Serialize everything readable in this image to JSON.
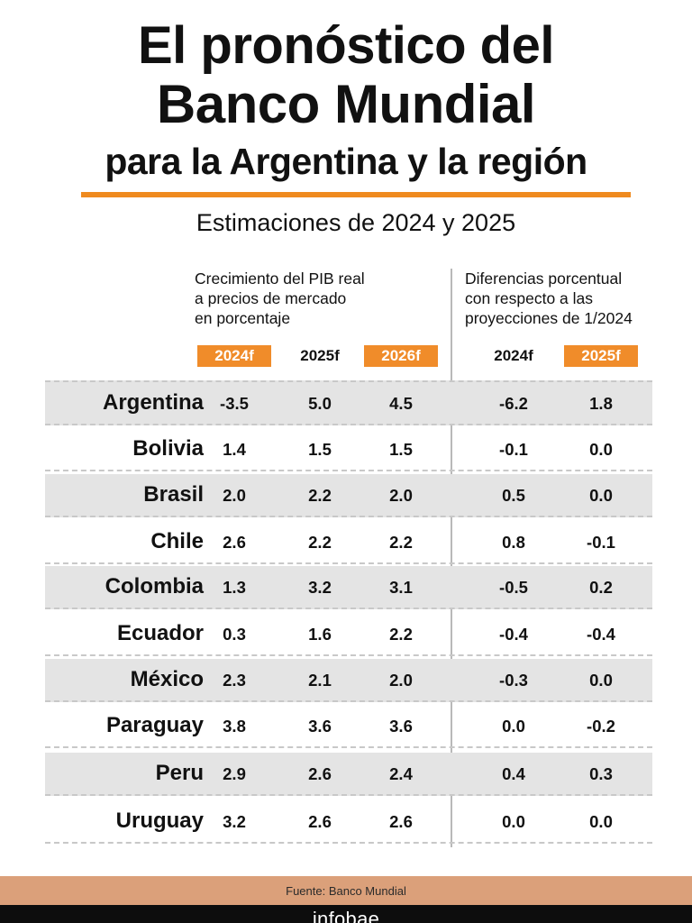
{
  "header": {
    "title_line1": "El pronóstico del",
    "title_line2": "Banco Mundial",
    "title_line3": "para la Argentina y la región",
    "subtitle": "Estimaciones de 2024 y 2025"
  },
  "groups": {
    "growth": [
      "Crecimiento del PIB real",
      "a precios de mercado",
      "en porcentaje"
    ],
    "difference": [
      "Diferencias porcentual",
      "con respecto a las",
      "proyecciones de 1/2024"
    ]
  },
  "colors": {
    "accent": "#f08c2a",
    "rule": "#ef8a1f",
    "row_shade": "#e4e4e4",
    "source_band": "#dba07a",
    "brand_band": "#0d0d0d"
  },
  "chart_data": {
    "type": "table",
    "columns": [
      {
        "label": "2024f",
        "group": "growth",
        "highlight": true
      },
      {
        "label": "2025f",
        "group": "growth",
        "highlight": false
      },
      {
        "label": "2026f",
        "group": "growth",
        "highlight": true
      },
      {
        "label": "2024f",
        "group": "difference",
        "highlight": false
      },
      {
        "label": "2025f",
        "group": "difference",
        "highlight": true
      }
    ],
    "rows": [
      {
        "country": "Argentina",
        "values": [
          "-3.5",
          "5.0",
          "4.5",
          "-6.2",
          "1.8"
        ]
      },
      {
        "country": "Bolivia",
        "values": [
          "1.4",
          "1.5",
          "1.5",
          "-0.1",
          "0.0"
        ]
      },
      {
        "country": "Brasil",
        "values": [
          "2.0",
          "2.2",
          "2.0",
          "0.5",
          "0.0"
        ]
      },
      {
        "country": "Chile",
        "values": [
          "2.6",
          "2.2",
          "2.2",
          "0.8",
          "-0.1"
        ]
      },
      {
        "country": "Colombia",
        "values": [
          "1.3",
          "3.2",
          "3.1",
          "-0.5",
          "0.2"
        ]
      },
      {
        "country": "Ecuador",
        "values": [
          "0.3",
          "1.6",
          "2.2",
          "-0.4",
          "-0.4"
        ]
      },
      {
        "country": "México",
        "values": [
          "2.3",
          "2.1",
          "2.0",
          "-0.3",
          "0.0"
        ]
      },
      {
        "country": "Paraguay",
        "values": [
          "3.8",
          "3.6",
          "3.6",
          "0.0",
          "-0.2"
        ]
      },
      {
        "country": "Peru",
        "values": [
          "2.9",
          "2.6",
          "2.4",
          "0.4",
          "0.3"
        ]
      },
      {
        "country": "Uruguay",
        "values": [
          "3.2",
          "2.6",
          "2.6",
          "0.0",
          "0.0"
        ]
      }
    ]
  },
  "footer": {
    "source": "Fuente: Banco Mundial",
    "brand": "infobae"
  }
}
